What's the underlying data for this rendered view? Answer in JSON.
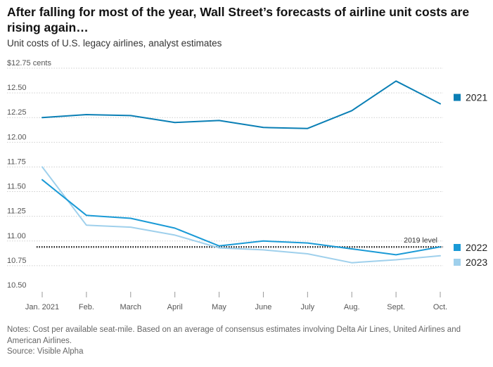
{
  "title": "After falling for most of the year, Wall Street’s forecasts of airline unit costs are rising again…",
  "subtitle": "Unit costs of U.S. legacy airlines, analyst estimates",
  "notes": "Notes: Cost per available seat-mile. Based on an average of consensus estimates involving Delta Air Lines, United Airlines and American Airlines.",
  "source": "Source: Visible Alpha",
  "chart_data": {
    "type": "line",
    "title": "After falling for most of the year, Wall Street’s forecasts of airline unit costs are rising again…",
    "subtitle": "Unit costs of U.S. legacy airlines, analyst estimates",
    "xlabel": "",
    "ylabel": "",
    "x": [
      "Jan. 2021",
      "Feb.",
      "March",
      "April",
      "May",
      "June",
      "July",
      "Aug.",
      "Sept.",
      "Oct."
    ],
    "ylim": [
      10.5,
      12.75
    ],
    "yticks": [
      10.5,
      10.75,
      11.0,
      11.25,
      11.5,
      11.75,
      12.0,
      12.25,
      12.5,
      12.75
    ],
    "ytick_labels": [
      "10.50",
      "10.75",
      "11.00",
      "11.25",
      "11.50",
      "11.75",
      "12.00",
      "12.25",
      "12.50",
      "$12.75 cents"
    ],
    "grid": true,
    "legend_position": "right",
    "series": [
      {
        "name": "2021",
        "color": "#0a7fb5",
        "values": [
          12.25,
          12.28,
          12.27,
          12.2,
          12.22,
          12.15,
          12.14,
          12.32,
          12.62,
          12.39
        ]
      },
      {
        "name": "2022",
        "color": "#1a9ad6",
        "values": [
          11.62,
          11.26,
          11.23,
          11.13,
          10.95,
          11.0,
          10.98,
          10.92,
          10.86,
          10.94
        ]
      },
      {
        "name": "2023",
        "color": "#9fd0ec",
        "values": [
          11.75,
          11.16,
          11.14,
          11.06,
          10.93,
          10.91,
          10.87,
          10.78,
          10.81,
          10.85
        ]
      }
    ],
    "reference_line": {
      "label": "2019 level",
      "value": 10.94,
      "style": "dotted",
      "color": "#222222"
    }
  }
}
